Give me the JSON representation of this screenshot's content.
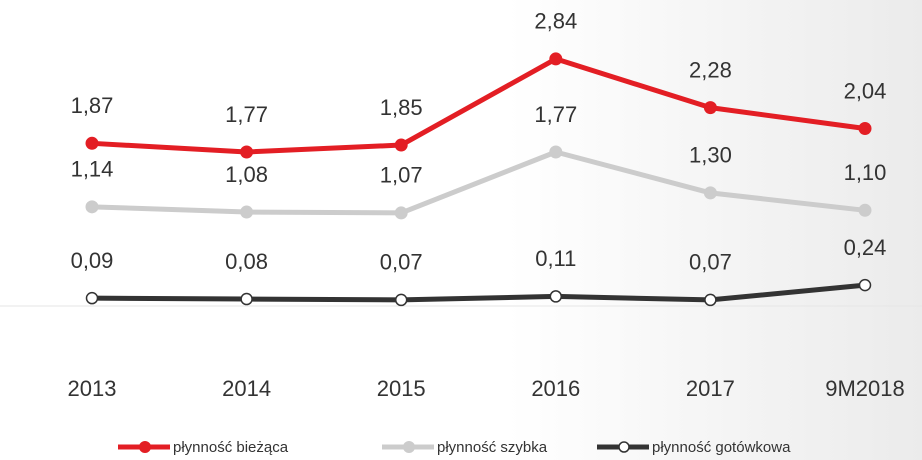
{
  "chart_data": {
    "type": "line",
    "categories": [
      "2013",
      "2014",
      "2015",
      "2016",
      "2017",
      "9M2018"
    ],
    "ylim": [
      0,
      3
    ],
    "series": [
      {
        "name": "płynność bieżąca",
        "color": "#e31e24",
        "values": [
          1.87,
          1.77,
          1.85,
          2.84,
          2.28,
          2.04
        ],
        "value_labels": [
          "1,87",
          "1,77",
          "1,85",
          "2,84",
          "2,28",
          "2,04"
        ]
      },
      {
        "name": "płynność szybka",
        "color": "#cccccc",
        "values": [
          1.14,
          1.08,
          1.07,
          1.77,
          1.3,
          1.1
        ],
        "value_labels": [
          "1,14",
          "1,08",
          "1,07",
          "1,77",
          "1,30",
          "1,10"
        ]
      },
      {
        "name": "płynność gotówkowa",
        "color": "#333333",
        "values": [
          0.09,
          0.08,
          0.07,
          0.11,
          0.07,
          0.24
        ],
        "value_labels": [
          "0,09",
          "0,08",
          "0,07",
          "0,11",
          "0,07",
          "0,24"
        ]
      }
    ]
  }
}
